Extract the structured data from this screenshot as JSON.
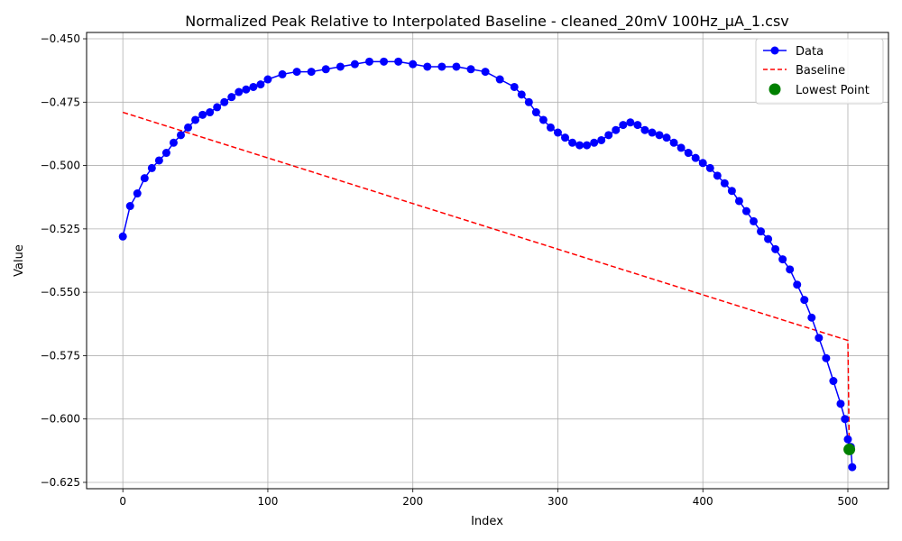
{
  "chart_data": {
    "type": "line",
    "title": "Normalized Peak Relative to Interpolated Baseline - cleaned_20mV 100Hz_µA_1.csv",
    "xlabel": "Index",
    "ylabel": "Value",
    "xlim": [
      -25,
      528
    ],
    "ylim": [
      -0.6275,
      -0.4475
    ],
    "xticks": [
      0,
      100,
      200,
      300,
      400,
      500
    ],
    "xtick_labels": [
      "0",
      "100",
      "200",
      "300",
      "400",
      "500"
    ],
    "yticks": [
      -0.625,
      -0.6,
      -0.575,
      -0.55,
      -0.525,
      -0.5,
      -0.475,
      -0.45
    ],
    "ytick_labels": [
      "−0.625",
      "−0.600",
      "−0.575",
      "−0.550",
      "−0.525",
      "−0.500",
      "−0.475",
      "−0.450"
    ],
    "grid": true,
    "legend": {
      "position": "top-right",
      "entries": [
        {
          "label": "Data",
          "color": "#0000ff",
          "style": "line-marker"
        },
        {
          "label": "Baseline",
          "color": "#ff0000",
          "style": "dashed"
        },
        {
          "label": "Lowest Point",
          "color": "#008000",
          "style": "marker"
        }
      ]
    },
    "series": [
      {
        "name": "Data",
        "color": "#0000ff",
        "x": [
          0,
          5,
          10,
          15,
          20,
          25,
          30,
          35,
          40,
          45,
          50,
          55,
          60,
          65,
          70,
          75,
          80,
          85,
          90,
          95,
          100,
          110,
          120,
          130,
          140,
          150,
          160,
          170,
          180,
          190,
          200,
          210,
          220,
          230,
          240,
          250,
          260,
          270,
          275,
          280,
          285,
          290,
          295,
          300,
          305,
          310,
          315,
          320,
          325,
          330,
          335,
          340,
          345,
          350,
          355,
          360,
          365,
          370,
          375,
          380,
          385,
          390,
          395,
          400,
          405,
          410,
          415,
          420,
          425,
          430,
          435,
          440,
          445,
          450,
          455,
          460,
          465,
          470,
          475,
          480,
          485,
          490,
          495,
          498,
          500,
          501,
          502,
          503
        ],
        "y": [
          -0.528,
          -0.516,
          -0.511,
          -0.505,
          -0.501,
          -0.498,
          -0.495,
          -0.491,
          -0.488,
          -0.485,
          -0.482,
          -0.48,
          -0.479,
          -0.477,
          -0.475,
          -0.473,
          -0.471,
          -0.47,
          -0.469,
          -0.468,
          -0.466,
          -0.464,
          -0.463,
          -0.463,
          -0.462,
          -0.461,
          -0.46,
          -0.459,
          -0.459,
          -0.459,
          -0.46,
          -0.461,
          -0.461,
          -0.461,
          -0.462,
          -0.463,
          -0.466,
          -0.469,
          -0.472,
          -0.475,
          -0.479,
          -0.482,
          -0.485,
          -0.487,
          -0.489,
          -0.491,
          -0.492,
          -0.492,
          -0.491,
          -0.49,
          -0.488,
          -0.486,
          -0.484,
          -0.483,
          -0.484,
          -0.486,
          -0.487,
          -0.488,
          -0.489,
          -0.491,
          -0.493,
          -0.495,
          -0.497,
          -0.499,
          -0.501,
          -0.504,
          -0.507,
          -0.51,
          -0.514,
          -0.518,
          -0.522,
          -0.526,
          -0.529,
          -0.533,
          -0.537,
          -0.541,
          -0.547,
          -0.553,
          -0.56,
          -0.568,
          -0.576,
          -0.585,
          -0.594,
          -0.6,
          -0.608,
          -0.612,
          -0.611,
          -0.619
        ]
      },
      {
        "name": "Baseline",
        "color": "#ff0000",
        "x": [
          0,
          500,
          501
        ],
        "y": [
          -0.479,
          -0.569,
          -0.612
        ]
      }
    ],
    "lowest_point": {
      "name": "Lowest Point",
      "x": 501,
      "y": -0.612,
      "color": "#008000"
    }
  }
}
